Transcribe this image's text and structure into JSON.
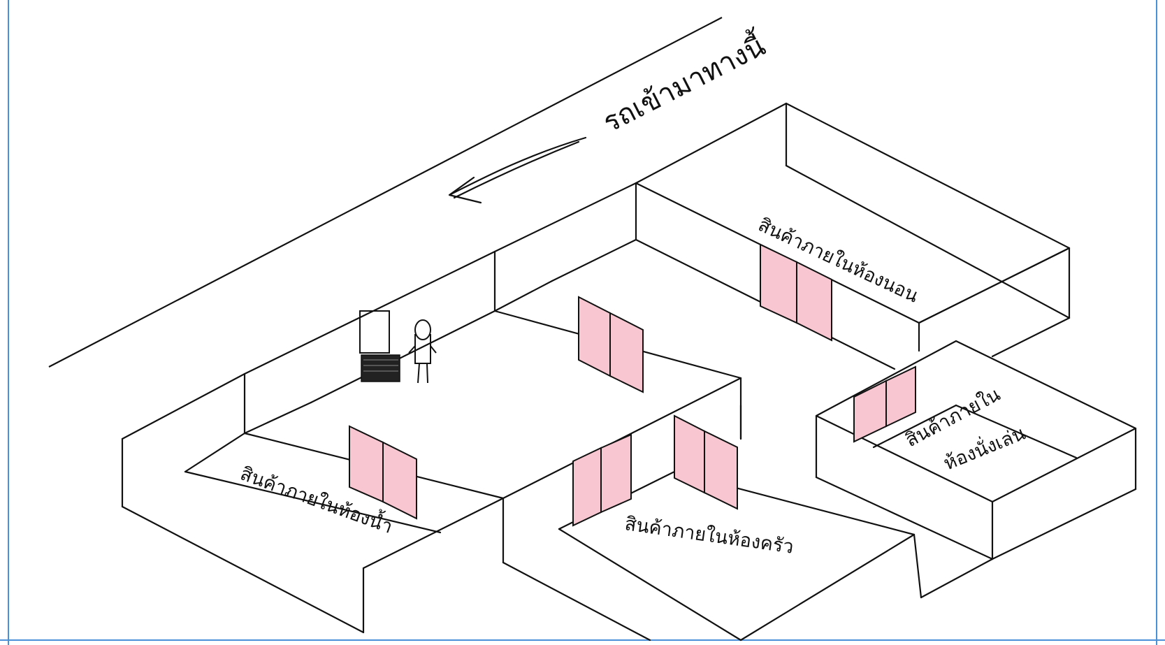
{
  "direction_text": "รถเข้ามาทางนี้",
  "zones": {
    "bedroom": "สินค้าภายในห้องนอน",
    "living_room_line1": "สินค้าภายใน",
    "living_room_line2": "ห้องนั่งเล่น",
    "bathroom": "สินค้าภายในห้องน้ำ",
    "kitchen": "สินค้าภายในห้องครัว"
  },
  "colors": {
    "door": "#f8c6d0",
    "line": "#111111",
    "frame": "#4a90d9"
  }
}
